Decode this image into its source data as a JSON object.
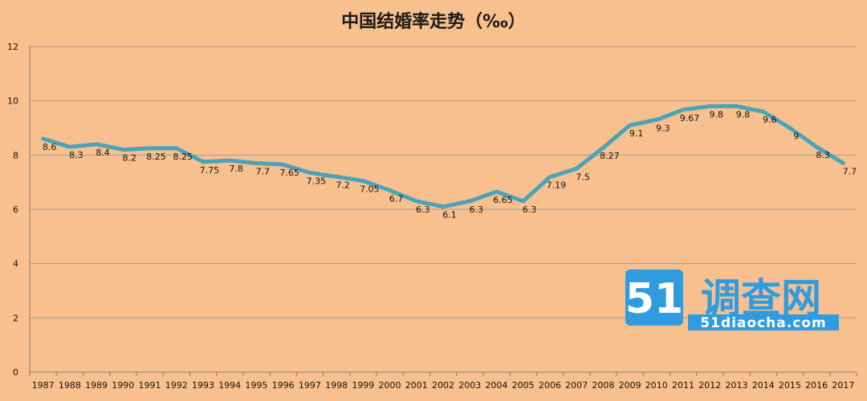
{
  "chart_data": {
    "type": "line",
    "title": "中国结婚率走势（‰）",
    "categories": [
      "1987",
      "1988",
      "1989",
      "1990",
      "1991",
      "1992",
      "1993",
      "1994",
      "1995",
      "1996",
      "1997",
      "1998",
      "1999",
      "2000",
      "2001",
      "2002",
      "2003",
      "2004",
      "2005",
      "2006",
      "2007",
      "2008",
      "2009",
      "2010",
      "2011",
      "2012",
      "2013",
      "2014",
      "2015",
      "2016",
      "2017"
    ],
    "series": [
      {
        "values": [
          8.6,
          8.3,
          8.4,
          8.2,
          8.25,
          8.25,
          7.75,
          7.8,
          7.7,
          7.65,
          7.35,
          7.2,
          7.05,
          6.7,
          6.3,
          6.1,
          6.3,
          6.65,
          6.3,
          7.19,
          7.5,
          8.27,
          9.1,
          9.3,
          9.67,
          9.8,
          9.8,
          9.6,
          9,
          8.3,
          7.7
        ],
        "labels": [
          "8.6",
          "8.3",
          "8.4",
          "8.2",
          "8.25",
          "8.25",
          "7.75",
          "7.8",
          "7.7",
          "7.65",
          "7.35",
          "7.2",
          "7.05",
          "6.7",
          "6.3",
          "6.1",
          "6.3",
          "6.65",
          "6.3",
          "7.19",
          "7.5",
          "8.27",
          "9.1",
          "9.3",
          "9.67",
          "9.8",
          "9.8",
          "9.6",
          "9",
          "8.3",
          "7.7"
        ],
        "color": "#4aa3b8"
      }
    ],
    "ylim": [
      0,
      12
    ],
    "yticks": [
      "0",
      "2",
      "4",
      "6",
      "8",
      "10",
      "12"
    ],
    "grid": true,
    "legend": "none",
    "background_color": "#f9c08f",
    "gridline_color": "#a89a8a"
  },
  "watermark": {
    "number": "51",
    "name": "调查网",
    "url": "51diaocha.com",
    "colors": {
      "blue": "#2f9ce0",
      "white": "#ffffff"
    }
  }
}
